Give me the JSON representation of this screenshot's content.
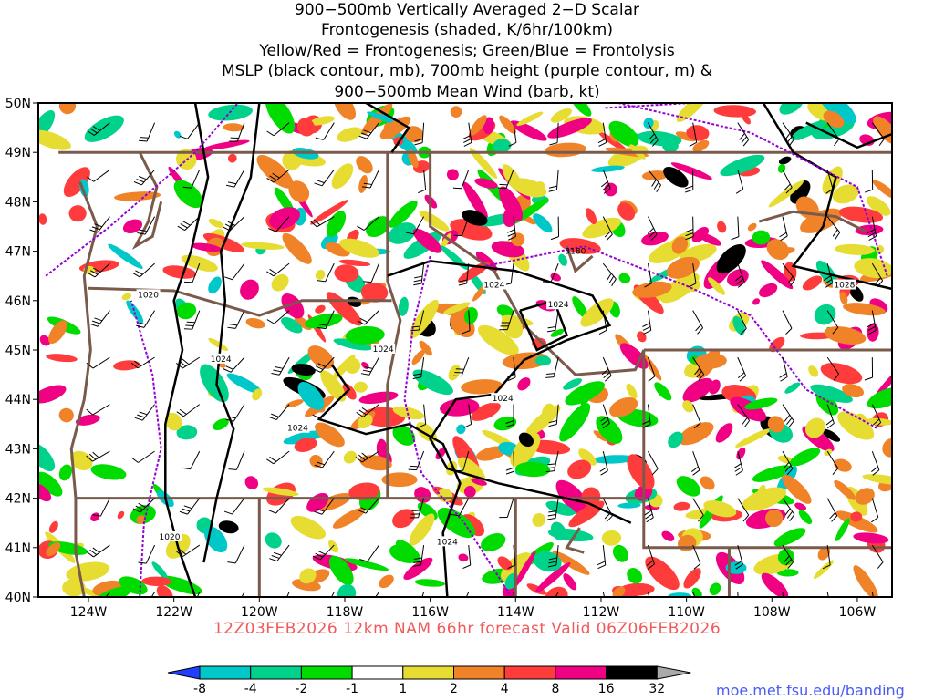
{
  "title": {
    "lines": [
      "900−500mb Vertically Averaged 2−D Scalar",
      "Frontogenesis (shaded, K/6hr/100km)",
      "Yellow/Red = Frontogenesis;  Green/Blue = Frontolysis",
      "MSLP (black contour, mb), 700mb height (purple contour, m) &",
      "900−500mb Mean Wind (barb, kt)"
    ]
  },
  "lat_labels": [
    "50N",
    "49N",
    "48N",
    "47N",
    "46N",
    "45N",
    "44N",
    "43N",
    "42N",
    "41N",
    "40N"
  ],
  "lon_labels": [
    "124W",
    "122W",
    "120W",
    "118W",
    "116W",
    "114W",
    "112W",
    "110W",
    "108W",
    "106W"
  ],
  "contour_labels": {
    "mslp": [
      "1020",
      "1024",
      "1024",
      "1024",
      "1024",
      "1024",
      "1024",
      "1028",
      "1020",
      "1024"
    ],
    "height": [
      "3180"
    ]
  },
  "subtitle": "12Z03FEB2026 12km NAM 66hr forecast Valid 06Z06FEB2026",
  "colorbar": {
    "labels": [
      "-8",
      "-4",
      "-2",
      "-1",
      "1",
      "2",
      "4",
      "8",
      "16",
      "32"
    ],
    "colors": [
      "#2040ff",
      "#00c8c8",
      "#00d28c",
      "#00dc00",
      "#ffffff",
      "#e6dc32",
      "#f08228",
      "#ff3c3c",
      "#f00082",
      "#000000",
      "#aaaaaa"
    ]
  },
  "colors": {
    "border": "#7a5a4a",
    "mslp": "#000000",
    "height": "#9400d3",
    "subtitle": "#f05a5a",
    "credit": "#4a5cf5"
  },
  "credit": "moe.met.fsu.edu/banding"
}
